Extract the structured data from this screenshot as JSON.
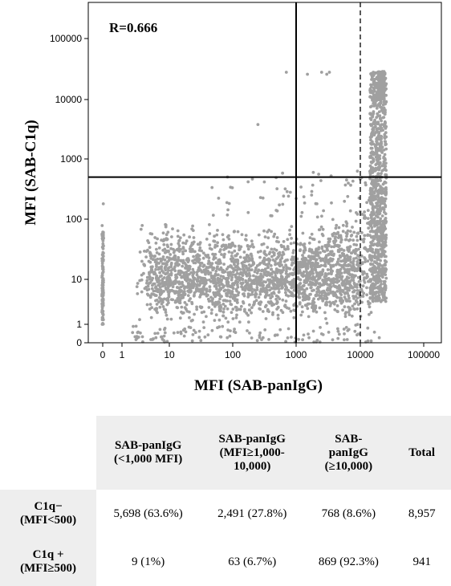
{
  "chart_data": {
    "type": "scatter",
    "title": "",
    "annotation": "R=0.666",
    "xlabel": "MFI  (SAB-panIgG)",
    "ylabel": "MFI (SAB-C1q)",
    "x_scale": "log (zero shown at origin)",
    "y_scale": "log (zero shown at origin)",
    "xlim": [
      0,
      100000
    ],
    "ylim": [
      0,
      100000
    ],
    "x_ticks": [
      "0",
      "1",
      "10",
      "100",
      "1000",
      "10000",
      "100000"
    ],
    "y_ticks": [
      "0",
      "1",
      "10",
      "100",
      "1000",
      "10000",
      "100000"
    ],
    "reference_lines": [
      {
        "axis": "x",
        "value": 1000,
        "style": "solid"
      },
      {
        "axis": "x",
        "value": 10000,
        "style": "dashed"
      },
      {
        "axis": "y",
        "value": 500,
        "style": "solid"
      }
    ],
    "point_color": "#a0a0a0",
    "grid": false,
    "sample_points": [
      [
        20,
        10
      ],
      [
        50,
        15
      ],
      [
        100,
        12
      ],
      [
        200,
        8
      ],
      [
        300,
        20
      ],
      [
        500,
        10
      ],
      [
        800,
        15
      ],
      [
        1500,
        12
      ],
      [
        3000,
        8
      ],
      [
        5000,
        20
      ],
      [
        8000,
        30
      ],
      [
        15000,
        50
      ],
      [
        20000,
        25000
      ],
      [
        22000,
        18000
      ],
      [
        18000,
        5000
      ],
      [
        16000,
        1200
      ],
      [
        700,
        28000
      ],
      [
        2500,
        28000
      ],
      [
        3000,
        26000
      ],
      [
        3300,
        28000
      ],
      [
        1500,
        26000
      ],
      [
        250,
        3800
      ],
      [
        500,
        320
      ],
      [
        1000,
        220
      ],
      [
        12000,
        400
      ]
    ]
  },
  "table": {
    "headers": [
      "",
      "SAB-panIgG\n(<1,000 MFI)",
      "SAB-panIgG\n(MFI≥1,000-\n10,000)",
      "SAB-\npanIgG\n(≥10,000)",
      "Total"
    ],
    "rows": [
      {
        "label": "C1q−\n(MFI<500)",
        "cells": [
          "5,698 (63.6%)",
          "2,491 (27.8%)",
          "768 (8.6%)",
          "8,957"
        ]
      },
      {
        "label": "C1q +\n(MFI≥500)",
        "cells": [
          "9 (1%)",
          "63 (6.7%)",
          "869 (92.3%)",
          "941"
        ]
      }
    ]
  }
}
